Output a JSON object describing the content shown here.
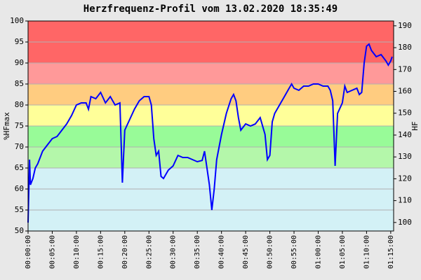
{
  "chart_data": {
    "type": "line",
    "title": "Herzfrequenz-Profil vom 13.02.2020 18:35:49",
    "y_label": "%HFmax",
    "y2_label": "HF",
    "xlim": [
      0,
      75.6
    ],
    "xticks": [
      {
        "value": 0,
        "label": "00:00:00"
      },
      {
        "value": 5,
        "label": "00:05:00"
      },
      {
        "value": 10,
        "label": "00:10:00"
      },
      {
        "value": 15,
        "label": "00:15:00"
      },
      {
        "value": 20,
        "label": "00:20:00"
      },
      {
        "value": 25,
        "label": "00:25:00"
      },
      {
        "value": 30,
        "label": "00:30:00"
      },
      {
        "value": 35,
        "label": "00:35:00"
      },
      {
        "value": 40,
        "label": "00:40:00"
      },
      {
        "value": 45,
        "label": "00:45:00"
      },
      {
        "value": 50,
        "label": "00:50:00"
      },
      {
        "value": 55,
        "label": "00:55:00"
      },
      {
        "value": 60,
        "label": "01:00:00"
      },
      {
        "value": 65,
        "label": "01:05:00"
      },
      {
        "value": 70,
        "label": "01:10:00"
      },
      {
        "value": 75,
        "label": "01:15:00"
      }
    ],
    "ylim": [
      50,
      100
    ],
    "yticks": [
      50,
      55,
      60,
      65,
      70,
      75,
      80,
      85,
      90,
      95,
      100
    ],
    "y2lim": [
      96.1,
      192.2
    ],
    "y2ticks": [
      100,
      110,
      120,
      130,
      140,
      150,
      160,
      170,
      180,
      190
    ],
    "grid": true,
    "zones": [
      {
        "from": 50,
        "to": 65,
        "color": "#d3f1f6"
      },
      {
        "from": 65,
        "to": 70,
        "color": "#b4f7aa"
      },
      {
        "from": 70,
        "to": 75,
        "color": "#98fb98"
      },
      {
        "from": 75,
        "to": 80,
        "color": "#ffff99"
      },
      {
        "from": 80,
        "to": 85,
        "color": "#ffcc80"
      },
      {
        "from": 85,
        "to": 90,
        "color": "#ff9999"
      },
      {
        "from": 90,
        "to": 100,
        "color": "#ff6666"
      }
    ],
    "series": [
      {
        "color": "#0000ff",
        "x": [
          0,
          0.3,
          0.5,
          1,
          1.5,
          2,
          3,
          4,
          5,
          6,
          7,
          8,
          9,
          10,
          11,
          12,
          12.5,
          13,
          14,
          15,
          16,
          17,
          18,
          19,
          19.5,
          20,
          21,
          22,
          23,
          24,
          25,
          25.5,
          26,
          26.5,
          27,
          27.5,
          28,
          29,
          30,
          31,
          32,
          33,
          34,
          35,
          36,
          36.5,
          37.5,
          38,
          38.5,
          39,
          40,
          41,
          42,
          42.5,
          43,
          43.5,
          44,
          45,
          46,
          47,
          48,
          49,
          49.5,
          50,
          50.5,
          51,
          52,
          53,
          54,
          54.5,
          55,
          56,
          57,
          58,
          59,
          60,
          61,
          62,
          62.5,
          63,
          63.5,
          64,
          65,
          65.5,
          66,
          67,
          68,
          68.5,
          69,
          69.5,
          70,
          70.5,
          71,
          72,
          73,
          74,
          74.5,
          75,
          75.3
        ],
        "values": [
          52,
          67,
          61,
          62.5,
          65,
          66,
          69,
          70.5,
          72,
          72.5,
          74,
          75.5,
          77.5,
          80,
          80.5,
          80.5,
          79,
          82,
          81.5,
          83,
          80.5,
          82,
          80,
          80.5,
          61.5,
          74,
          76.5,
          79,
          81,
          82,
          82,
          80,
          72,
          68,
          69,
          63,
          62.5,
          64.5,
          65.5,
          68,
          67.5,
          67.5,
          67,
          66.5,
          66.8,
          69,
          61,
          55,
          60,
          67,
          73,
          78,
          81.5,
          82.5,
          81,
          77,
          74,
          75.5,
          75,
          75.5,
          77,
          73,
          67,
          68,
          76,
          78,
          80,
          82,
          84,
          85,
          84,
          83.5,
          84.5,
          84.5,
          85,
          85,
          84.5,
          84.5,
          83.5,
          81,
          65.5,
          78,
          80.5,
          84.5,
          83,
          83.5,
          84,
          82.5,
          83,
          90,
          94,
          94.5,
          93,
          91.5,
          92,
          90.5,
          89.5,
          90.5,
          91.5
        ]
      }
    ]
  }
}
